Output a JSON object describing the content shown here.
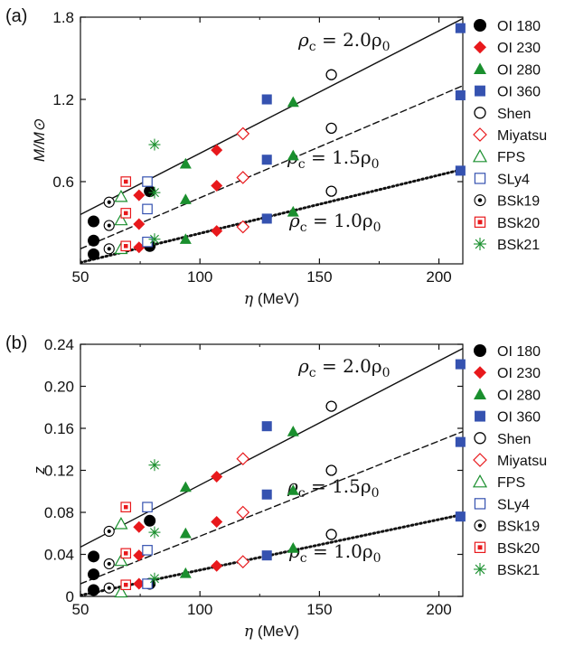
{
  "panels": {
    "a": {
      "label": "(a)"
    },
    "b": {
      "label": "(b)"
    }
  },
  "legend": {
    "items": [
      {
        "label": "OI 180",
        "marker": "filled-circle",
        "color": "#000000"
      },
      {
        "label": "OI 230",
        "marker": "filled-diamond",
        "color": "#e8191c"
      },
      {
        "label": "OI 280",
        "marker": "filled-triangle",
        "color": "#1a8f2e"
      },
      {
        "label": "OI 360",
        "marker": "filled-square",
        "color": "#3552b0"
      },
      {
        "label": "Shen",
        "marker": "open-circle",
        "color": "#000000"
      },
      {
        "label": "Miyatsu",
        "marker": "open-diamond",
        "color": "#e8191c"
      },
      {
        "label": "FPS",
        "marker": "open-triangle",
        "color": "#1a8f2e"
      },
      {
        "label": "SLy4",
        "marker": "open-square",
        "color": "#3552b0"
      },
      {
        "label": "BSk19",
        "marker": "dotted-circle",
        "color": "#000000"
      },
      {
        "label": "BSk20",
        "marker": "dotted-square",
        "color": "#e8191c"
      },
      {
        "label": "BSk21",
        "marker": "asterisk",
        "color": "#1a8f2e"
      }
    ]
  },
  "chart_data": [
    {
      "type": "scatter",
      "panel": "a",
      "xlabel": "η (MeV)",
      "ylabel": "M/M⊙",
      "xlim": [
        50,
        210
      ],
      "ylim": [
        0,
        1.8
      ],
      "xticks": [
        "50",
        "100",
        "150",
        "200"
      ],
      "yticks": [
        "0.6",
        "1.2",
        "1.8"
      ],
      "lines": [
        {
          "label_parts": [
            "ρ",
            "c",
            " = 2.0ρ",
            "0"
          ],
          "style": "solid",
          "x": [
            50,
            210
          ],
          "y": [
            0.36,
            1.79
          ]
        },
        {
          "label_parts": [
            "ρ",
            "c",
            " = 1.5ρ",
            "0"
          ],
          "style": "dashed",
          "x": [
            50,
            210
          ],
          "y": [
            0.11,
            1.3
          ]
        },
        {
          "label_parts": [
            "ρ",
            "c",
            " = 1.0ρ",
            "0"
          ],
          "style": "dotted",
          "x": [
            50,
            210
          ],
          "y": [
            0.01,
            0.69
          ]
        }
      ],
      "series": [
        {
          "name": "OI 180",
          "points": [
            [
              55.5,
              0.31
            ],
            [
              55.5,
              0.17
            ],
            [
              55.5,
              0.07
            ],
            [
              79,
              0.53
            ],
            [
              79,
              0.13
            ]
          ]
        },
        {
          "name": "OI 230",
          "points": [
            [
              74.5,
              0.5
            ],
            [
              74.5,
              0.29
            ],
            [
              74.5,
              0.12
            ],
            [
              107,
              0.83
            ],
            [
              107,
              0.57
            ],
            [
              107,
              0.24
            ]
          ]
        },
        {
          "name": "OI 280",
          "points": [
            [
              94,
              0.73
            ],
            [
              94,
              0.47
            ],
            [
              94,
              0.18
            ],
            [
              139,
              1.18
            ],
            [
              139,
              0.79
            ],
            [
              139,
              0.38
            ]
          ]
        },
        {
          "name": "OI 360",
          "points": [
            [
              128,
              1.2
            ],
            [
              128,
              0.76
            ],
            [
              128,
              0.33
            ],
            [
              209,
              1.72
            ],
            [
              209,
              1.23
            ],
            [
              209,
              0.68
            ]
          ]
        },
        {
          "name": "Shen",
          "points": [
            [
              155,
              1.38
            ],
            [
              155,
              0.99
            ],
            [
              155,
              0.53
            ]
          ]
        },
        {
          "name": "Miyatsu",
          "points": [
            [
              118,
              0.95
            ],
            [
              118,
              0.63
            ],
            [
              118,
              0.27
            ]
          ]
        },
        {
          "name": "FPS",
          "points": [
            [
              67,
              0.49
            ],
            [
              67,
              0.32
            ],
            [
              67,
              0.11
            ]
          ]
        },
        {
          "name": "SLy4",
          "points": [
            [
              78,
              0.6
            ],
            [
              78,
              0.4
            ],
            [
              78,
              0.16
            ]
          ]
        },
        {
          "name": "BSk19",
          "points": [
            [
              62,
              0.45
            ],
            [
              62,
              0.28
            ],
            [
              62,
              0.11
            ]
          ]
        },
        {
          "name": "BSk20",
          "points": [
            [
              69,
              0.6
            ],
            [
              69,
              0.37
            ],
            [
              69,
              0.13
            ]
          ]
        },
        {
          "name": "BSk21",
          "points": [
            [
              81,
              0.87
            ],
            [
              81,
              0.52
            ],
            [
              81,
              0.18
            ]
          ]
        }
      ]
    },
    {
      "type": "scatter",
      "panel": "b",
      "xlabel": "η (MeV)",
      "ylabel": "z",
      "xlim": [
        50,
        210
      ],
      "ylim": [
        0,
        0.24
      ],
      "xticks": [
        "50",
        "100",
        "150",
        "200"
      ],
      "yticks": [
        "0",
        "0.04",
        "0.08",
        "0.12",
        "0.16",
        "0.20",
        "0.24"
      ],
      "lines": [
        {
          "label_parts": [
            "ρ",
            "c",
            " = 2.0ρ",
            "0"
          ],
          "style": "solid",
          "x": [
            50,
            210
          ],
          "y": [
            0.047,
            0.236
          ]
        },
        {
          "label_parts": [
            "ρ",
            "c",
            " = 1.5ρ",
            "0"
          ],
          "style": "dashed",
          "x": [
            50,
            210
          ],
          "y": [
            0.012,
            0.157
          ]
        },
        {
          "label_parts": [
            "ρ",
            "c",
            " = 1.0ρ",
            "0"
          ],
          "style": "dotted",
          "x": [
            50,
            210
          ],
          "y": [
            0.001,
            0.078
          ]
        }
      ],
      "series": [
        {
          "name": "OI 180",
          "points": [
            [
              55.5,
              0.038
            ],
            [
              55.5,
              0.021
            ],
            [
              55.5,
              0.006
            ],
            [
              79,
              0.072
            ],
            [
              79,
              0.012
            ]
          ]
        },
        {
          "name": "OI 230",
          "points": [
            [
              74.5,
              0.066
            ],
            [
              74.5,
              0.039
            ],
            [
              74.5,
              0.012
            ],
            [
              107,
              0.114
            ],
            [
              107,
              0.071
            ],
            [
              107,
              0.029
            ]
          ]
        },
        {
          "name": "OI 280",
          "points": [
            [
              94,
              0.104
            ],
            [
              94,
              0.06
            ],
            [
              94,
              0.022
            ],
            [
              139,
              0.157
            ],
            [
              139,
              0.101
            ],
            [
              139,
              0.046
            ]
          ]
        },
        {
          "name": "OI 360",
          "points": [
            [
              128,
              0.162
            ],
            [
              128,
              0.097
            ],
            [
              128,
              0.039
            ],
            [
              209,
              0.221
            ],
            [
              209,
              0.147
            ],
            [
              209,
              0.076
            ]
          ]
        },
        {
          "name": "Shen",
          "points": [
            [
              155,
              0.181
            ],
            [
              155,
              0.12
            ],
            [
              155,
              0.059
            ]
          ]
        },
        {
          "name": "Miyatsu",
          "points": [
            [
              118,
              0.131
            ],
            [
              118,
              0.08
            ],
            [
              118,
              0.033
            ]
          ]
        },
        {
          "name": "FPS",
          "points": [
            [
              67,
              0.069
            ],
            [
              67,
              0.034
            ],
            [
              67,
              0.004
            ]
          ]
        },
        {
          "name": "SLy4",
          "points": [
            [
              78,
              0.085
            ],
            [
              78,
              0.044
            ],
            [
              78,
              0.012
            ]
          ]
        },
        {
          "name": "BSk19",
          "points": [
            [
              62,
              0.062
            ],
            [
              62,
              0.031
            ],
            [
              62,
              0.008
            ]
          ]
        },
        {
          "name": "BSk20",
          "points": [
            [
              69,
              0.085
            ],
            [
              69,
              0.041
            ],
            [
              69,
              0.011
            ]
          ]
        },
        {
          "name": "BSk21",
          "points": [
            [
              81,
              0.125
            ],
            [
              81,
              0.061
            ],
            [
              81,
              0.017
            ]
          ]
        }
      ]
    }
  ]
}
